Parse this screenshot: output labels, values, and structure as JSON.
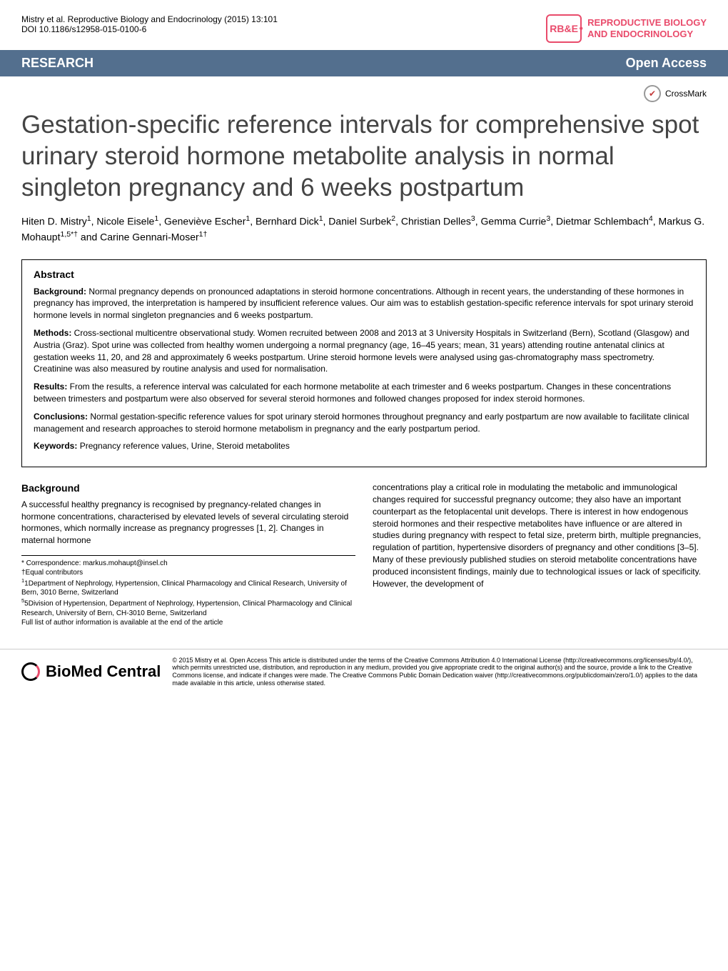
{
  "meta": {
    "citation": "Mistry et al. Reproductive Biology and Endocrinology (2015) 13:101",
    "doi": "DOI 10.1186/s12958-015-0100-6",
    "journal_logo_abbr": "RB&E",
    "journal_name_line1": "REPRODUCTIVE BIOLOGY",
    "journal_name_line2": "AND ENDOCRINOLOGY"
  },
  "research_bar": {
    "label": "RESEARCH",
    "open_access": "Open Access"
  },
  "crossmark_label": "CrossMark",
  "title": "Gestation-specific reference intervals for comprehensive spot urinary steroid hormone metabolite analysis in normal singleton pregnancy and 6 weeks postpartum",
  "authors_html": "Hiten D. Mistry<sup>1</sup>, Nicole Eisele<sup>1</sup>, Geneviève Escher<sup>1</sup>, Bernhard Dick<sup>1</sup>, Daniel Surbek<sup>2</sup>, Christian Delles<sup>3</sup>, Gemma Currie<sup>3</sup>, Dietmar Schlembach<sup>4</sup>, Markus G. Mohaupt<sup>1,5*†</sup> and Carine Gennari-Moser<sup>1†</sup>",
  "abstract": {
    "heading": "Abstract",
    "background_label": "Background:",
    "background_text": " Normal pregnancy depends on pronounced adaptations in steroid hormone concentrations. Although in recent years, the understanding of these hormones in pregnancy has improved, the interpretation is hampered by insufficient reference values. Our aim was to establish gestation-specific reference intervals for spot urinary steroid hormone levels in normal singleton pregnancies and 6 weeks postpartum.",
    "methods_label": "Methods:",
    "methods_text": " Cross-sectional multicentre observational study. Women recruited between 2008 and 2013 at 3 University Hospitals in Switzerland (Bern), Scotland (Glasgow) and Austria (Graz). Spot urine was collected from healthy women undergoing a normal pregnancy (age, 16–45 years; mean, 31 years) attending routine antenatal clinics at gestation weeks 11, 20, and 28 and approximately 6 weeks postpartum. Urine steroid hormone levels were analysed using gas-chromatography mass spectrometry. Creatinine was also measured by routine analysis and used for normalisation.",
    "results_label": "Results:",
    "results_text": " From the results, a reference interval was calculated for each hormone metabolite at each trimester and 6 weeks postpartum. Changes in these concentrations between trimesters and postpartum were also observed for several steroid hormones and followed changes proposed for index steroid hormones.",
    "conclusions_label": "Conclusions:",
    "conclusions_text": " Normal gestation-specific reference values for spot urinary steroid hormones throughout pregnancy and early postpartum are now available to facilitate clinical management and research approaches to steroid hormone metabolism in pregnancy and the early postpartum period.",
    "keywords_label": "Keywords:",
    "keywords_text": " Pregnancy reference values, Urine, Steroid metabolites"
  },
  "body": {
    "background_heading": "Background",
    "left_col": "A successful healthy pregnancy is recognised by pregnancy-related changes in hormone concentrations, characterised by elevated levels of several circulating steroid hormones, which normally increase as pregnancy progresses [1, 2]. Changes in maternal hormone",
    "right_col": "concentrations play a critical role in modulating the metabolic and immunological changes required for successful pregnancy outcome; they also have an important counterpart as the fetoplacental unit develops. There is interest in how endogenous steroid hormones and their respective metabolites have influence or are altered in studies during pregnancy with respect to fetal size, preterm birth, multiple pregnancies, regulation of partition, hypertensive disorders of pregnancy and other conditions [3–5]. Many of these previously published studies on steroid metabolite concentrations have produced inconsistent findings, mainly due to technological issues or lack of specificity. However, the development of"
  },
  "footnotes": {
    "correspondence": "* Correspondence: markus.mohaupt@insel.ch",
    "equal": "†Equal contributors",
    "aff1": "1Department of Nephrology, Hypertension, Clinical Pharmacology and Clinical Research, University of Bern, 3010 Berne, Switzerland",
    "aff5": "5Division of Hypertension, Department of Nephrology, Hypertension, Clinical Pharmacology and Clinical Research, University of Bern, CH-3010 Berne, Switzerland",
    "full": "Full list of author information is available at the end of the article"
  },
  "footer": {
    "bmc_label": "BioMed Central",
    "license_text": "© 2015 Mistry et al. Open Access This article is distributed under the terms of the Creative Commons Attribution 4.0 International License (http://creativecommons.org/licenses/by/4.0/), which permits unrestricted use, distribution, and reproduction in any medium, provided you give appropriate credit to the original author(s) and the source, provide a link to the Creative Commons license, and indicate if changes were made. The Creative Commons Public Domain Dedication waiver (http://creativecommons.org/publicdomain/zero/1.0/) applies to the data made available in this article, unless otherwise stated."
  },
  "colors": {
    "bar_bg": "#536f8e",
    "accent": "#e94b6b"
  }
}
